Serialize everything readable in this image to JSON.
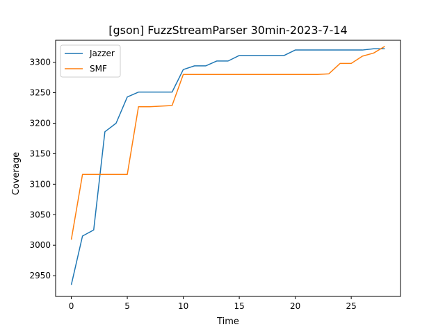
{
  "chart_data": {
    "type": "line",
    "title": "[gson] FuzzStreamParser 30min-2023-7-14",
    "xlabel": "Time",
    "ylabel": "Coverage",
    "xlim": [
      -1.4,
      29.4
    ],
    "ylim": [
      2916,
      3336
    ],
    "xticks": [
      0,
      5,
      10,
      15,
      20,
      25
    ],
    "yticks": [
      2950,
      3000,
      3050,
      3100,
      3150,
      3200,
      3250,
      3300
    ],
    "grid": false,
    "legend": "upper left",
    "series": [
      {
        "name": "Jazzer",
        "color": "#1f77b4",
        "x": [
          0,
          1,
          2,
          3,
          4,
          5,
          6,
          7,
          8,
          9,
          10,
          11,
          12,
          13,
          14,
          15,
          16,
          17,
          18,
          19,
          20,
          21,
          22,
          23,
          24,
          25,
          26,
          27,
          28
        ],
        "y": [
          2935,
          3015,
          3025,
          3186,
          3200,
          3243,
          3251,
          3251,
          3251,
          3251,
          3288,
          3294,
          3294,
          3302,
          3302,
          3311,
          3311,
          3311,
          3311,
          3311,
          3320,
          3320,
          3320,
          3320,
          3320,
          3320,
          3320,
          3322,
          3322
        ]
      },
      {
        "name": "SMF",
        "color": "#ff7f0e",
        "x": [
          0,
          1,
          2,
          3,
          4,
          5,
          6,
          7,
          8,
          9,
          10,
          11,
          12,
          13,
          14,
          15,
          16,
          17,
          18,
          19,
          20,
          21,
          22,
          23,
          24,
          25,
          26,
          27,
          28
        ],
        "y": [
          3009,
          3116,
          3116,
          3116,
          3116,
          3116,
          3227,
          3227,
          3228,
          3229,
          3280,
          3280,
          3280,
          3280,
          3280,
          3280,
          3280,
          3280,
          3280,
          3280,
          3280,
          3280,
          3280,
          3281,
          3298,
          3298,
          3310,
          3315,
          3326
        ]
      }
    ]
  }
}
